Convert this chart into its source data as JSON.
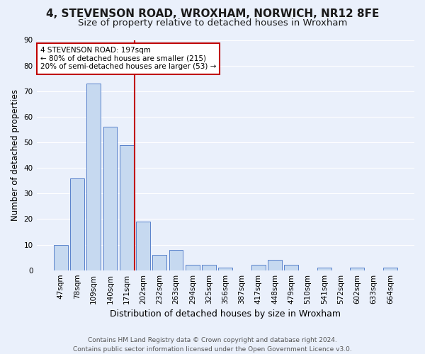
{
  "title1": "4, STEVENSON ROAD, WROXHAM, NORWICH, NR12 8FE",
  "title2": "Size of property relative to detached houses in Wroxham",
  "xlabel": "Distribution of detached houses by size in Wroxham",
  "ylabel": "Number of detached properties",
  "footnote1": "Contains HM Land Registry data © Crown copyright and database right 2024.",
  "footnote2": "Contains public sector information licensed under the Open Government Licence v3.0.",
  "bar_values": [
    10,
    36,
    73,
    56,
    49,
    19,
    6,
    8,
    2,
    2,
    1,
    0,
    2,
    4,
    2,
    0,
    1,
    0,
    1,
    0,
    1
  ],
  "categories": [
    "47sqm",
    "78sqm",
    "109sqm",
    "140sqm",
    "171sqm",
    "202sqm",
    "232sqm",
    "263sqm",
    "294sqm",
    "325sqm",
    "356sqm",
    "387sqm",
    "417sqm",
    "448sqm",
    "479sqm",
    "510sqm",
    "541sqm",
    "572sqm",
    "602sqm",
    "633sqm",
    "664sqm"
  ],
  "bar_color": "#c6d9f0",
  "bar_edge_color": "#4472c4",
  "vline_color": "#c00000",
  "annotation_text": "4 STEVENSON ROAD: 197sqm\n← 80% of detached houses are smaller (215)\n20% of semi-detached houses are larger (53) →",
  "annotation_box_color": "#ffffff",
  "annotation_box_edge": "#c00000",
  "ylim": [
    0,
    90
  ],
  "yticks": [
    0,
    10,
    20,
    30,
    40,
    50,
    60,
    70,
    80,
    90
  ],
  "background_color": "#eaf0fb",
  "grid_color": "#ffffff",
  "title1_fontsize": 11,
  "title2_fontsize": 9.5,
  "xlabel_fontsize": 9,
  "ylabel_fontsize": 8.5,
  "tick_fontsize": 7.5,
  "annotation_fontsize": 7.5,
  "footnote_fontsize": 6.5
}
